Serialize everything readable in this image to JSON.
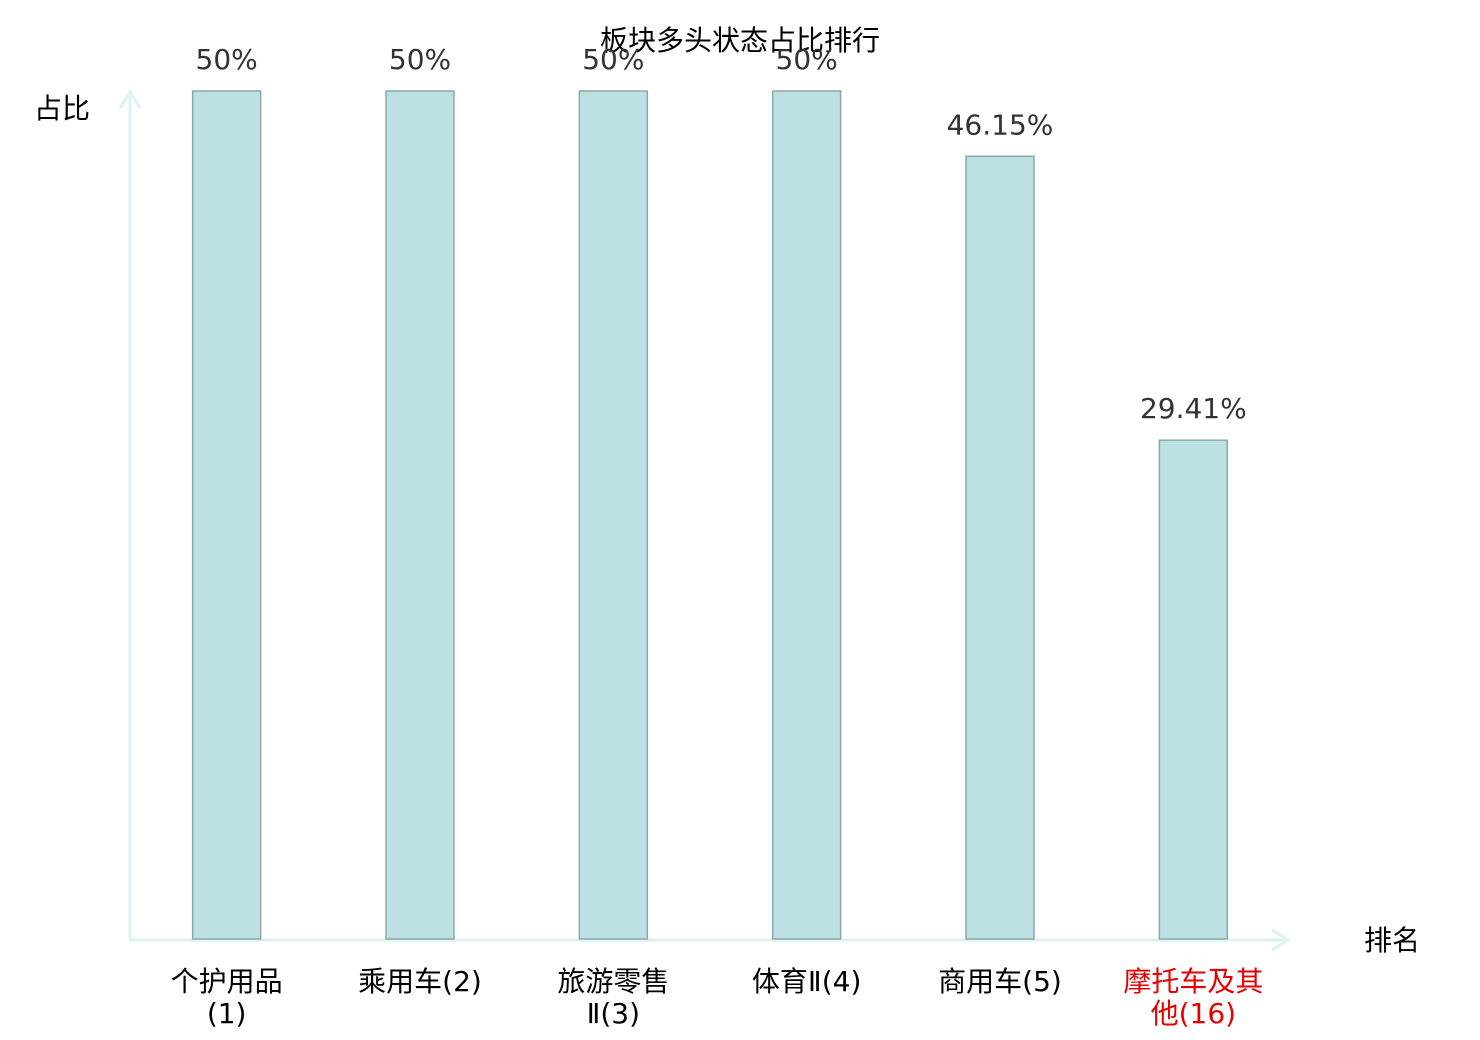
{
  "chart_data": {
    "type": "bar",
    "title": "板块多头状态占比排行",
    "y_label": "占比",
    "x_label": "排名",
    "categories": [
      "个护用品(1)",
      "乘用车(2)",
      "旅游零售Ⅱ(3)",
      "体育Ⅱ(4)",
      "商用车(5)",
      "摩托车及其他(16)"
    ],
    "category_colors": [
      "#000000",
      "#000000",
      "#000000",
      "#000000",
      "#000000",
      "#e60000"
    ],
    "values": [
      50,
      50,
      50,
      50,
      46.15,
      29.41
    ],
    "value_labels": [
      "50%",
      "50%",
      "50%",
      "50%",
      "46.15%",
      "29.41%"
    ],
    "color": "#bde0e2",
    "edge_color": "#8aa9ab",
    "axis_color": "#def2ef",
    "ylim": [
      0,
      50
    ]
  }
}
